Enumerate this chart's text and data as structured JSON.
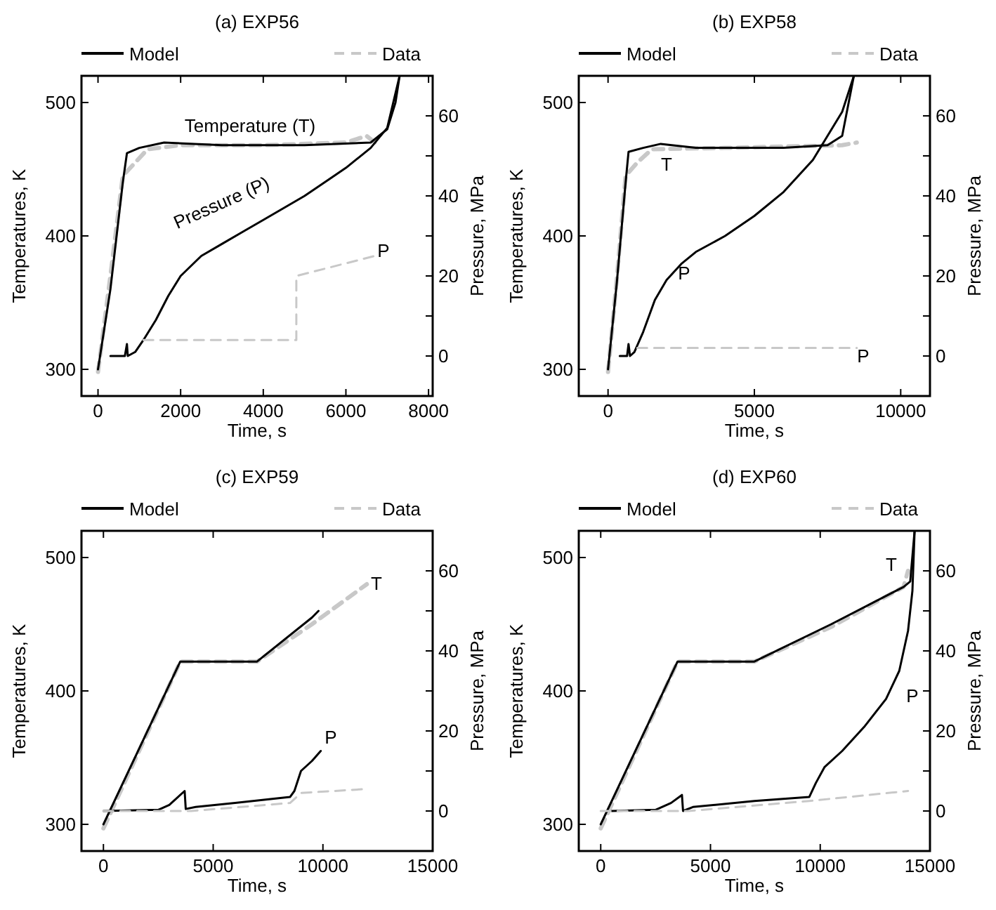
{
  "chart_data": [
    {
      "type": "line",
      "title": "(a) EXP56",
      "xlabel": "Time, s",
      "ylabel": "Temperatures, K",
      "y2label": "Pressure, MPa",
      "legend": "top",
      "xlim": [
        -400,
        8100
      ],
      "ylim": [
        280,
        520
      ],
      "y2lim": [
        -10,
        70
      ],
      "xticks": [
        0,
        2000,
        4000,
        6000,
        8000
      ],
      "yticks": [
        300,
        400,
        500
      ],
      "y2ticks": [
        0,
        {
          "value": 10,
          "label": null
        },
        20,
        {
          "value": 30,
          "label": null
        },
        40,
        {
          "value": 50,
          "label": null
        },
        60
      ],
      "series": [
        {
          "name": "Data",
          "color": "#c8c8c8",
          "line_style": "dashed",
          "x": [
            0,
            300,
            600,
            900,
            1200,
            2000,
            4000,
            6000,
            6500,
            6700
          ],
          "values": [
            298,
            370,
            445,
            455,
            465,
            468,
            468,
            470,
            475,
            470
          ]
        },
        {
          "name": "Model",
          "color": "#000000",
          "line_style": "solid",
          "x": [
            0,
            300,
            600,
            700,
            1000,
            1600,
            3000,
            5000,
            6600,
            7000,
            7200,
            7300
          ],
          "values": [
            300,
            360,
            440,
            462,
            466,
            470,
            468,
            468,
            470,
            480,
            500,
            520
          ]
        },
        {
          "color": "#000000",
          "line_style": "solid",
          "axis": "y2",
          "x": [
            300,
            650,
            700,
            720,
            900,
            1100,
            1400,
            1700,
            2000,
            2500,
            3000,
            3500,
            4000,
            5000,
            6000,
            6600,
            7000,
            7300
          ],
          "values": [
            0,
            0,
            3,
            0,
            1,
            4,
            9,
            15,
            20,
            25,
            28,
            31,
            34,
            40,
            47,
            52,
            57,
            70
          ]
        },
        {
          "color": "#c8c8c8",
          "line_style": "dashed",
          "axis": "y2",
          "x": [
            1100,
            4800,
            4800,
            6700
          ],
          "values": [
            4,
            4,
            20,
            25
          ]
        }
      ],
      "annotations": [
        "Temperature (T)",
        "Pressure (P)",
        "P"
      ]
    },
    {
      "type": "line",
      "title": "(b) EXP58",
      "xlabel": "Time, s",
      "ylabel": "Temperatures, K",
      "y2label": "Pressure, MPa",
      "legend": "top",
      "xlim": [
        -1000,
        11000
      ],
      "ylim": [
        280,
        520
      ],
      "y2lim": [
        -10,
        70
      ],
      "xticks": [
        0,
        5000,
        10000
      ],
      "yticks": [
        300,
        400,
        500
      ],
      "y2ticks": [
        0,
        {
          "value": 10,
          "label": null
        },
        20,
        {
          "value": 30,
          "label": null
        },
        40,
        {
          "value": 50,
          "label": null
        },
        60
      ],
      "series": [
        {
          "name": "Data",
          "color": "#c8c8c8",
          "line_style": "dashed",
          "x": [
            0,
            300,
            600,
            1000,
            1500,
            4000,
            8000,
            8500
          ],
          "values": [
            298,
            368,
            445,
            455,
            465,
            466,
            468,
            470
          ]
        },
        {
          "name": "Model",
          "color": "#000000",
          "line_style": "solid",
          "x": [
            0,
            300,
            600,
            700,
            1200,
            1800,
            3000,
            6000,
            7500,
            8000,
            8400
          ],
          "values": [
            300,
            365,
            440,
            463,
            466,
            469,
            466,
            466,
            468,
            475,
            520
          ]
        },
        {
          "color": "#000000",
          "line_style": "solid",
          "axis": "y2",
          "x": [
            400,
            650,
            700,
            750,
            900,
            1200,
            1600,
            2000,
            2500,
            3000,
            4000,
            5000,
            6000,
            7000,
            7500,
            8000,
            8400
          ],
          "values": [
            0,
            0,
            3,
            0,
            1,
            6,
            14,
            19,
            23,
            26,
            30,
            35,
            41,
            49,
            55,
            61,
            70
          ]
        },
        {
          "color": "#c8c8c8",
          "line_style": "dashed",
          "axis": "y2",
          "x": [
            1000,
            8500
          ],
          "values": [
            2,
            2
          ]
        }
      ],
      "annotations": [
        "T",
        "P",
        "P"
      ]
    },
    {
      "type": "line",
      "title": "(c) EXP59",
      "xlabel": "Time, s",
      "ylabel": "Temperatures, K",
      "y2label": "Pressure, MPa",
      "legend": "top",
      "xlim": [
        -1000,
        15000
      ],
      "ylim": [
        280,
        520
      ],
      "y2lim": [
        -10,
        70
      ],
      "xticks": [
        0,
        5000,
        10000,
        15000
      ],
      "yticks": [
        300,
        400,
        500
      ],
      "y2ticks": [
        0,
        {
          "value": 10,
          "label": null
        },
        20,
        {
          "value": 30,
          "label": null
        },
        40,
        {
          "value": 50,
          "label": null
        },
        60
      ],
      "series": [
        {
          "name": "Data",
          "color": "#c8c8c8",
          "line_style": "dashed",
          "x": [
            0,
            3500,
            7000,
            9500,
            12000
          ],
          "values": [
            297,
            422,
            422,
            450,
            480
          ]
        },
        {
          "name": "Model",
          "color": "#000000",
          "line_style": "solid",
          "x": [
            0,
            3500,
            7000,
            9500,
            9800
          ],
          "values": [
            300,
            422,
            422,
            455,
            460
          ]
        },
        {
          "color": "#000000",
          "line_style": "solid",
          "axis": "y2",
          "x": [
            0,
            2500,
            3000,
            3700,
            3750,
            4200,
            6000,
            8500,
            8700,
            9000,
            9500,
            9900
          ],
          "values": [
            0,
            0.3,
            1.5,
            5,
            0.5,
            1,
            2,
            3.5,
            5,
            10,
            12.5,
            15
          ]
        },
        {
          "color": "#c8c8c8",
          "line_style": "dashed",
          "axis": "y2",
          "x": [
            0,
            4000,
            8500,
            9000,
            12000
          ],
          "values": [
            0,
            0,
            2,
            4.5,
            5.5
          ]
        }
      ],
      "annotations": [
        "T",
        "P"
      ]
    },
    {
      "type": "line",
      "title": "(d) EXP60",
      "xlabel": "Time, s",
      "ylabel": "Temperatures, K",
      "y2label": "Pressure, MPa",
      "legend": "top",
      "xlim": [
        -1000,
        15000
      ],
      "ylim": [
        280,
        520
      ],
      "y2lim": [
        -10,
        70
      ],
      "xticks": [
        0,
        5000,
        10000,
        15000
      ],
      "yticks": [
        300,
        400,
        500
      ],
      "y2ticks": [
        0,
        {
          "value": 10,
          "label": null
        },
        20,
        {
          "value": 30,
          "label": null
        },
        40,
        {
          "value": 50,
          "label": null
        },
        60
      ],
      "series": [
        {
          "name": "Data",
          "color": "#c8c8c8",
          "line_style": "dashed",
          "x": [
            0,
            3500,
            7000,
            10500,
            13800,
            14000
          ],
          "values": [
            297,
            422,
            422,
            448,
            478,
            490
          ]
        },
        {
          "name": "Model",
          "color": "#000000",
          "line_style": "solid",
          "x": [
            0,
            3500,
            7000,
            10500,
            13800,
            14100,
            14300
          ],
          "values": [
            300,
            422,
            422,
            450,
            478,
            482,
            520
          ]
        },
        {
          "color": "#000000",
          "line_style": "solid",
          "axis": "y2",
          "x": [
            500,
            2500,
            3200,
            3700,
            3750,
            4200,
            7000,
            9500,
            9800,
            10200,
            11000,
            12000,
            13000,
            13600,
            14000,
            14200,
            14300
          ],
          "values": [
            0,
            0.3,
            2,
            4,
            0,
            1,
            2.5,
            3.5,
            7,
            11,
            15,
            21,
            28,
            35,
            45,
            55,
            70
          ]
        },
        {
          "color": "#c8c8c8",
          "line_style": "dashed",
          "axis": "y2",
          "x": [
            0,
            4000,
            9500,
            14000
          ],
          "values": [
            0,
            0,
            2.5,
            5
          ]
        }
      ],
      "annotations": [
        "T",
        "P"
      ]
    }
  ]
}
